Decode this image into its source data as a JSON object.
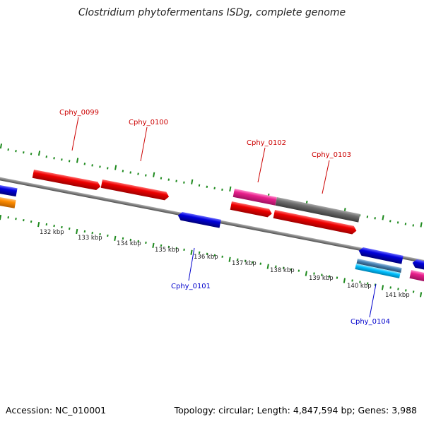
{
  "title": "Clostridium phytofermentans ISDg, complete genome",
  "footer": {
    "accession": "Accession: NC_010001",
    "summary": "Topology: circular; Length: 4,847,594 bp; Genes: 3,988"
  },
  "colors": {
    "backbone": "#7f7f7f",
    "tick": "#1e8a1e",
    "red": "#ee0000",
    "blue": "#0000dd",
    "pink": "#e8208c",
    "gray": "#6f6f6f",
    "orange": "#ff8c00",
    "steel": "#4682b4",
    "cyan": "#00bfff",
    "label_top": "#cc0000",
    "label_bottom": "#0000cc"
  },
  "kbp_ticks": [
    "132 kbp",
    "133 kbp",
    "134 kbp",
    "135 kbp",
    "136 kbp",
    "137 kbp",
    "138 kbp",
    "139 kbp",
    "140 kbp",
    "141 kbp"
  ],
  "gene_labels_top": [
    "Cphy_0099",
    "Cphy_0100",
    "Cphy_0102",
    "Cphy_0103"
  ],
  "gene_labels_bottom": [
    "Cphy_0101",
    "Cphy_0104"
  ]
}
